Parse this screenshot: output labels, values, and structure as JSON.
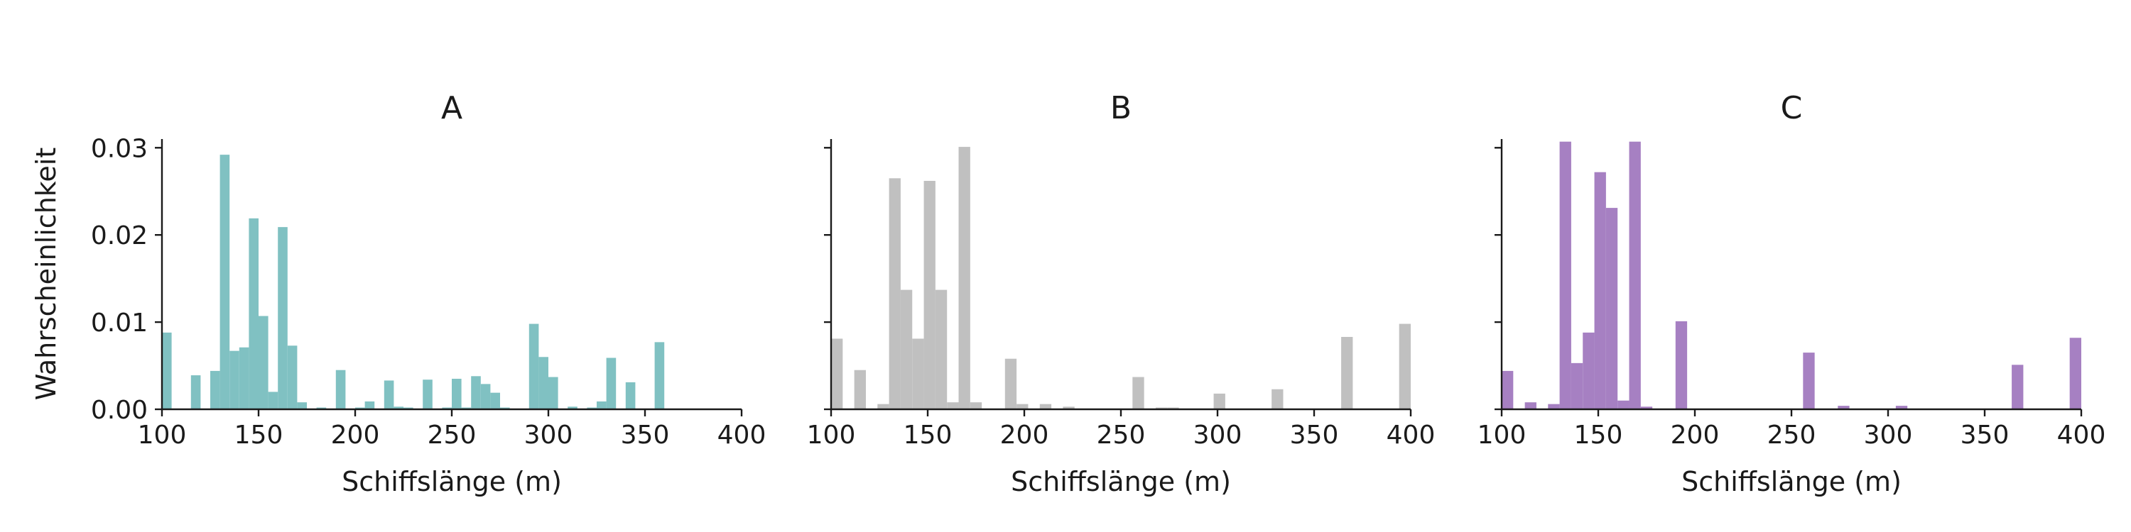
{
  "charts": [
    {
      "title": "A",
      "color": "#80c1c2",
      "show_ylabels": true,
      "ylabel": "Wahrscheinlichkeit",
      "xlabel": "Schiffslänge (m)"
    },
    {
      "title": "B",
      "color": "#c0c0c0",
      "show_ylabels": false,
      "ylabel": "",
      "xlabel": "Schiffslänge (m)"
    },
    {
      "title": "C",
      "color": "#a680c2",
      "show_ylabels": false,
      "ylabel": "",
      "xlabel": "Schiffslänge (m)"
    }
  ],
  "chart_data": [
    {
      "type": "bar",
      "title": "A",
      "xlabel": "Schiffslänge (m)",
      "ylabel": "Wahrscheinlichkeit",
      "xlim": [
        100,
        400
      ],
      "ylim": [
        0,
        0.031
      ],
      "xticks": [
        100,
        150,
        200,
        250,
        300,
        350,
        400
      ],
      "xtick_labels": [
        "100",
        "150",
        "200",
        "250",
        "300",
        "350",
        "400"
      ],
      "yticks": [
        0.0,
        0.01,
        0.02,
        0.03
      ],
      "ytick_labels": [
        "0.00",
        "0.01",
        "0.02",
        "0.03"
      ],
      "bin_width": 5,
      "bins": [
        [
          100,
          0.0088
        ],
        [
          115,
          0.0039
        ],
        [
          125,
          0.0044
        ],
        [
          130,
          0.0292
        ],
        [
          135,
          0.0067
        ],
        [
          140,
          0.0071
        ],
        [
          145,
          0.0219
        ],
        [
          150,
          0.0107
        ],
        [
          155,
          0.002
        ],
        [
          160,
          0.0209
        ],
        [
          165,
          0.0073
        ],
        [
          170,
          0.0008
        ],
        [
          180,
          0.0002
        ],
        [
          190,
          0.0045
        ],
        [
          200,
          0.0002
        ],
        [
          205,
          0.0009
        ],
        [
          215,
          0.0033
        ],
        [
          220,
          0.0003
        ],
        [
          225,
          0.0002
        ],
        [
          235,
          0.0034
        ],
        [
          245,
          0.0002
        ],
        [
          250,
          0.0035
        ],
        [
          255,
          0.0002
        ],
        [
          260,
          0.0038
        ],
        [
          265,
          0.0029
        ],
        [
          270,
          0.0019
        ],
        [
          275,
          0.0002
        ],
        [
          290,
          0.0098
        ],
        [
          295,
          0.006
        ],
        [
          300,
          0.0037
        ],
        [
          310,
          0.0003
        ],
        [
          320,
          0.0002
        ],
        [
          325,
          0.0009
        ],
        [
          330,
          0.0059
        ],
        [
          340,
          0.0031
        ],
        [
          355,
          0.0077
        ]
      ]
    },
    {
      "type": "bar",
      "title": "B",
      "xlabel": "Schiffslänge (m)",
      "ylabel": "",
      "xlim": [
        100,
        400
      ],
      "ylim": [
        0,
        0.031
      ],
      "xticks": [
        100,
        150,
        200,
        250,
        300,
        350,
        400
      ],
      "xtick_labels": [
        "100",
        "150",
        "200",
        "250",
        "300",
        "350",
        "400"
      ],
      "yticks": [
        0.0,
        0.01,
        0.02,
        0.03
      ],
      "ytick_labels": [],
      "bin_width": 6,
      "bins": [
        [
          100,
          0.0081
        ],
        [
          112,
          0.0045
        ],
        [
          124,
          0.0006
        ],
        [
          130,
          0.0265
        ],
        [
          136,
          0.0137
        ],
        [
          142,
          0.0081
        ],
        [
          148,
          0.0262
        ],
        [
          154,
          0.0137
        ],
        [
          160,
          0.0008
        ],
        [
          166,
          0.0301
        ],
        [
          172,
          0.0008
        ],
        [
          190,
          0.0058
        ],
        [
          196,
          0.0006
        ],
        [
          208,
          0.0006
        ],
        [
          220,
          0.0003
        ],
        [
          256,
          0.0037
        ],
        [
          268,
          0.0002
        ],
        [
          274,
          0.0002
        ],
        [
          298,
          0.0018
        ],
        [
          328,
          0.0023
        ],
        [
          364,
          0.0083
        ],
        [
          394,
          0.0098
        ]
      ]
    },
    {
      "type": "bar",
      "title": "C",
      "xlabel": "Schiffslänge (m)",
      "ylabel": "",
      "xlim": [
        100,
        400
      ],
      "ylim": [
        0,
        0.031
      ],
      "xticks": [
        100,
        150,
        200,
        250,
        300,
        350,
        400
      ],
      "xtick_labels": [
        "100",
        "150",
        "200",
        "250",
        "300",
        "350",
        "400"
      ],
      "yticks": [
        0.0,
        0.01,
        0.02,
        0.03
      ],
      "ytick_labels": [],
      "bin_width": 6,
      "bins": [
        [
          100,
          0.0044
        ],
        [
          112,
          0.0008
        ],
        [
          124,
          0.0006
        ],
        [
          130,
          0.0307
        ],
        [
          136,
          0.0053
        ],
        [
          142,
          0.0088
        ],
        [
          148,
          0.0272
        ],
        [
          154,
          0.0231
        ],
        [
          160,
          0.001
        ],
        [
          166,
          0.0307
        ],
        [
          172,
          0.0003
        ],
        [
          190,
          0.0101
        ],
        [
          256,
          0.0065
        ],
        [
          274,
          0.0004
        ],
        [
          304,
          0.0004
        ],
        [
          364,
          0.0051
        ],
        [
          394,
          0.0082
        ]
      ]
    }
  ]
}
